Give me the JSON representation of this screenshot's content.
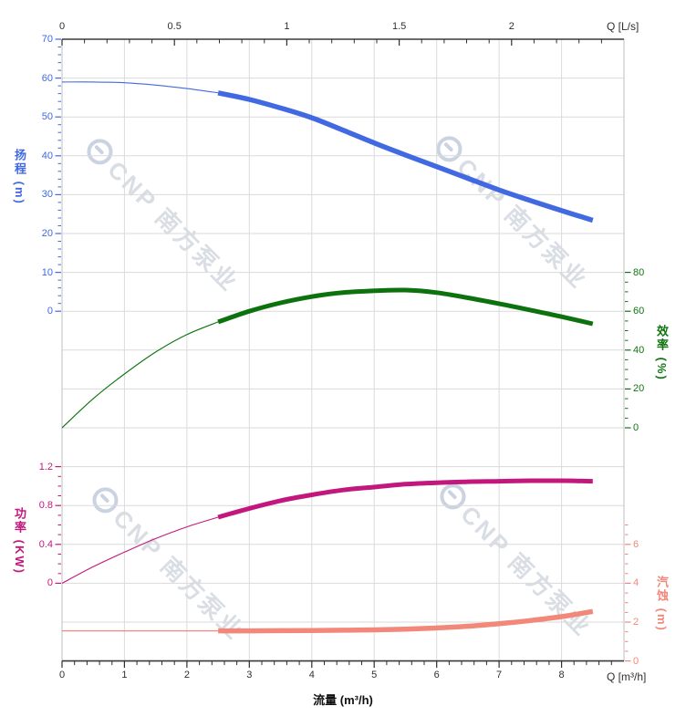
{
  "watermark": {
    "text": "CNP 南方泵业",
    "logo": "cnp-circle-logo",
    "text_color": "#D9DDE4",
    "logo_color": "#CBD3E3"
  },
  "chart_data": {
    "type": "line",
    "title": "",
    "grid": "on",
    "colors": {
      "grid": "#DADADA",
      "frame": "#BFBFBF",
      "axis_line": "#3A3A3A",
      "background": "#FFFFFF"
    },
    "x_axis_bottom": {
      "title": "流量 (m³/h)",
      "unit_label": "Q [m³/h]",
      "min": 0,
      "max": 9,
      "majors": [
        0,
        1,
        2,
        3,
        4,
        5,
        6,
        7,
        8
      ],
      "minor_step": 0.2,
      "color": "#2F2F2F"
    },
    "x_axis_top": {
      "unit_label": "Q [L/s]",
      "min": 0,
      "max": 2.5,
      "majors": [
        0,
        0.5,
        1,
        1.5,
        2
      ],
      "minor_step": 0.1,
      "color": "#2F2F2F"
    },
    "y_axes": {
      "head": {
        "label": "扬程 (m)",
        "color": "#4169E1",
        "side": "left",
        "max_value": 70,
        "max_row": 0,
        "units_per_row": 10,
        "majors": [
          70,
          60,
          50,
          40,
          30,
          20,
          10,
          0
        ],
        "minor_step": 2,
        "minor_min": 0,
        "minor_max": 70
      },
      "efficiency": {
        "label": "效率 (%)",
        "color": "#107410",
        "side": "right",
        "max_value": 80,
        "max_row": 6,
        "units_per_row": 20,
        "majors": [
          80,
          60,
          40,
          20,
          0
        ],
        "minor_step": 5,
        "minor_min": 0,
        "minor_max": 80
      },
      "power": {
        "label": "功率 (KW)",
        "color": "#C2187E",
        "side": "left",
        "max_value": 1.2,
        "max_row": 11,
        "units_per_row": 0.4,
        "majors": [
          1.2,
          0.8,
          0.4,
          0
        ],
        "minor_step": 0.1,
        "minor_min": 0,
        "minor_max": 1.2
      },
      "npsh": {
        "label": "汽蚀 (m)",
        "color": "#F2887A",
        "side": "right",
        "max_value": 6,
        "max_row": 13,
        "units_per_row": 2,
        "majors": [
          6,
          4,
          2,
          0
        ],
        "minor_step": 0.5,
        "minor_min": 0,
        "minor_max": 7
      }
    },
    "q_m3h": [
      0,
      0.5,
      1,
      1.5,
      2,
      2.5,
      3,
      3.5,
      4,
      4.5,
      5,
      5.5,
      6,
      6.5,
      7,
      7.5,
      8,
      8.5
    ],
    "series": [
      {
        "id": "head",
        "label": "扬程",
        "axis": "head",
        "color": "#4169E1",
        "thin_to": 2.5,
        "thin_width": 1.1,
        "thick_width": 5.5,
        "values": [
          59,
          59,
          58.8,
          58.2,
          57.3,
          56.2,
          54.5,
          52.3,
          49.8,
          46.6,
          43.3,
          40.2,
          37.2,
          34.2,
          31.2,
          28.5,
          25.9,
          23.4
        ]
      },
      {
        "id": "efficiency",
        "label": "效率",
        "axis": "efficiency",
        "color": "#0D720D",
        "thin_to": 2.5,
        "thin_width": 1.1,
        "thick_width": 5,
        "values": [
          0,
          15,
          27.7,
          39,
          48,
          54.5,
          60,
          64.3,
          67.5,
          69.6,
          70.5,
          70.9,
          69.6,
          66.9,
          63.9,
          60.6,
          57.2,
          53.5
        ]
      },
      {
        "id": "power",
        "label": "功率",
        "axis": "power",
        "color": "#C2187E",
        "thin_to": 2.5,
        "thin_width": 1.1,
        "thick_width": 5,
        "values": [
          0,
          0.17,
          0.32,
          0.46,
          0.58,
          0.68,
          0.77,
          0.85,
          0.91,
          0.96,
          0.99,
          1.02,
          1.035,
          1.045,
          1.05,
          1.055,
          1.055,
          1.05
        ]
      },
      {
        "id": "npsh",
        "label": "汽蚀",
        "axis": "npsh",
        "color": "#F2887A",
        "thin_to": 2.5,
        "thin_width": 1.3,
        "thick_width": 5.5,
        "values": [
          1.55,
          1.55,
          1.55,
          1.55,
          1.55,
          1.55,
          1.55,
          1.56,
          1.57,
          1.58,
          1.6,
          1.64,
          1.7,
          1.79,
          1.92,
          2.08,
          2.28,
          2.55
        ]
      }
    ]
  }
}
